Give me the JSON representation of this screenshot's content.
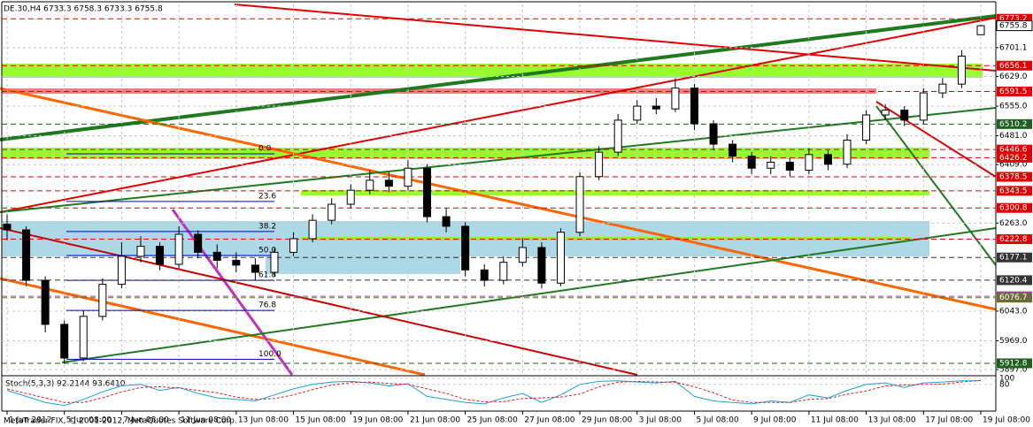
{
  "chart_data": {
    "type": "candlestick",
    "title": "DE.30,H4  6733.3 6758.3 6733.3 6755.8",
    "footer": "MetaTrader FIX, © 2001-2012, MetaQuotes Software Corp.",
    "categories": [
      "1 Jun 2012",
      null,
      null,
      "5 Jun 08:00",
      null,
      null,
      "7 Jun 08:00",
      null,
      null,
      "11 Jun 08:00",
      null,
      null,
      "13 Jun 08:00",
      null,
      null,
      "15 Jun 08:00",
      null,
      null,
      "19 Jun 08:00",
      null,
      null,
      "21 Jun 08:00",
      null,
      null,
      "25 Jun 08:00",
      null,
      null,
      "27 Jun 08:00",
      null,
      null,
      "29 Jun 08:00",
      null,
      null,
      "3 Jul 08:00",
      null,
      null,
      "5 Jul 08:00",
      null,
      null,
      "9 Jul 08:00",
      null,
      null,
      "11 Jul 08:00",
      null,
      null,
      "13 Jul 08:00",
      null,
      null,
      "17 Jul 08:00",
      null,
      null,
      "19 Jul 08:00"
    ],
    "open": [
      6260,
      6246,
      6120,
      6010,
      5926,
      6030,
      6110,
      6180,
      6205,
      6160,
      6235,
      6190,
      6170,
      6158,
      6140,
      6190,
      6224,
      6270,
      6310,
      6345,
      6370,
      6355,
      6400,
      6279,
      6255,
      6146,
      6120,
      6165,
      6202,
      6113,
      6240,
      6379,
      6440,
      6520,
      6555,
      6548,
      6600,
      6511,
      6460,
      6430,
      6400,
      6415,
      6395,
      6434,
      6410,
      6470,
      6533,
      6545,
      6520,
      6588,
      6610,
      6733.3
    ],
    "high": [
      6285,
      6255,
      6130,
      6020,
      6045,
      6125,
      6215,
      6230,
      6215,
      6255,
      6245,
      6210,
      6190,
      6175,
      6200,
      6240,
      6285,
      6325,
      6360,
      6395,
      6390,
      6420,
      6410,
      6300,
      6265,
      6160,
      6180,
      6225,
      6215,
      6250,
      6390,
      6455,
      6535,
      6570,
      6575,
      6625,
      6610,
      6520,
      6470,
      6440,
      6430,
      6425,
      6450,
      6445,
      6485,
      6545,
      6560,
      6555,
      6600,
      6625,
      6695,
      6758.3
    ],
    "low": [
      6220,
      6105,
      5990,
      5912.8,
      5918,
      6020,
      6100,
      6165,
      6145,
      6150,
      6175,
      6150,
      6140,
      6120,
      6130,
      6180,
      6215,
      6260,
      6300,
      6335,
      6340,
      6345,
      6265,
      6240,
      6130,
      6105,
      6110,
      6155,
      6100,
      6105,
      6230,
      6370,
      6430,
      6510,
      6535,
      6540,
      6495,
      6445,
      6415,
      6385,
      6385,
      6380,
      6385,
      6395,
      6400,
      6460,
      6520,
      6505,
      6510,
      6575,
      6600,
      6733.3
    ],
    "close": [
      6246,
      6120,
      6010,
      5926,
      6030,
      6110,
      6180,
      6205,
      6160,
      6235,
      6190,
      6170,
      6158,
      6140,
      6190,
      6224,
      6270,
      6310,
      6345,
      6370,
      6355,
      6400,
      6279,
      6255,
      6146,
      6120,
      6165,
      6202,
      6113,
      6240,
      6379,
      6440,
      6520,
      6555,
      6548,
      6600,
      6511,
      6460,
      6430,
      6400,
      6415,
      6395,
      6434,
      6410,
      6470,
      6533,
      6545,
      6520,
      6588,
      6610,
      6680,
      6755.8
    ],
    "up_color": "#ffffff",
    "down_color": "#000000",
    "ylim": [
      5884,
      6809
    ],
    "yticks": [
      6701.1,
      {
        "value": 6629,
        "label": "6629.0"
      },
      {
        "value": 6555,
        "label": "6555.0"
      },
      {
        "value": 6481,
        "label": "6481.0"
      },
      {
        "value": 6409,
        "label": "6409.0"
      },
      {
        "value": 6263,
        "label": "6263.0"
      },
      {
        "value": 6043,
        "label": "6043.0"
      },
      {
        "value": 5969,
        "label": "5969.0"
      },
      {
        "value": 5897,
        "label": "5897.0"
      }
    ],
    "grid": true,
    "levels": [
      {
        "value": 6773.2,
        "color": "#e00000"
      },
      {
        "value": 6656.1,
        "color": "#e00000"
      },
      {
        "value": 6591.5,
        "color": "#e00000"
      },
      {
        "value": 6510.2,
        "color": "#1f5f1f"
      },
      {
        "value": 6446.6,
        "color": "#e00000"
      },
      {
        "value": 6426.2,
        "color": "#e00000"
      },
      {
        "value": 6378.5,
        "color": "#e00000"
      },
      {
        "value": 6343.5,
        "color": "#e00000"
      },
      {
        "value": 6300.8,
        "color": "#e00000"
      },
      {
        "value": 6222.8,
        "color": "#e00000"
      },
      {
        "value": 6177.1,
        "color": "#333333"
      },
      {
        "value": 6120.4,
        "color": "#333333"
      },
      {
        "value": 6080.2,
        "color": "#a040a0"
      },
      {
        "value": 6076.7,
        "color": "#6b6b3a"
      },
      {
        "value": 5912.8,
        "color": "#1f5f1f"
      }
    ],
    "fibo": [
      {
        "value": 6436,
        "label": "0.0"
      },
      {
        "value": 6317,
        "label": "23.6"
      },
      {
        "value": 6242,
        "label": "38.2"
      },
      {
        "value": 6182,
        "label": "50.0"
      },
      {
        "value": 6120,
        "label": "61.8"
      },
      {
        "value": 6045,
        "label": "76.8"
      },
      {
        "value": 5923,
        "label": "100.0"
      }
    ],
    "fibo_color": "#0000cc",
    "stoch": {
      "title": "Stoch(5,3,3) 92.2144 93.6410",
      "ylim": [
        0,
        100
      ],
      "yticks": [
        80,
        100
      ],
      "series": [
        {
          "color": "#1ea0e0",
          "values": [
            60,
            40,
            20,
            10,
            30,
            55,
            75,
            80,
            60,
            70,
            50,
            35,
            30,
            25,
            45,
            65,
            80,
            88,
            90,
            85,
            75,
            82,
            40,
            30,
            20,
            15,
            35,
            50,
            20,
            45,
            80,
            90,
            92,
            88,
            85,
            90,
            40,
            25,
            20,
            15,
            25,
            20,
            45,
            35,
            60,
            80,
            85,
            70,
            85,
            88,
            92,
            92.2144
          ]
        },
        {
          "color": "#e02020",
          "values": [
            65,
            50,
            35,
            20,
            20,
            35,
            55,
            70,
            72,
            68,
            60,
            52,
            38,
            30,
            33,
            45,
            63,
            78,
            86,
            88,
            83,
            80,
            65,
            50,
            30,
            22,
            23,
            33,
            35,
            38,
            48,
            72,
            87,
            90,
            88,
            87,
            72,
            52,
            28,
            20,
            20,
            20,
            30,
            33,
            47,
            58,
            75,
            78,
            80,
            81,
            88,
            93.641
          ]
        }
      ]
    }
  }
}
